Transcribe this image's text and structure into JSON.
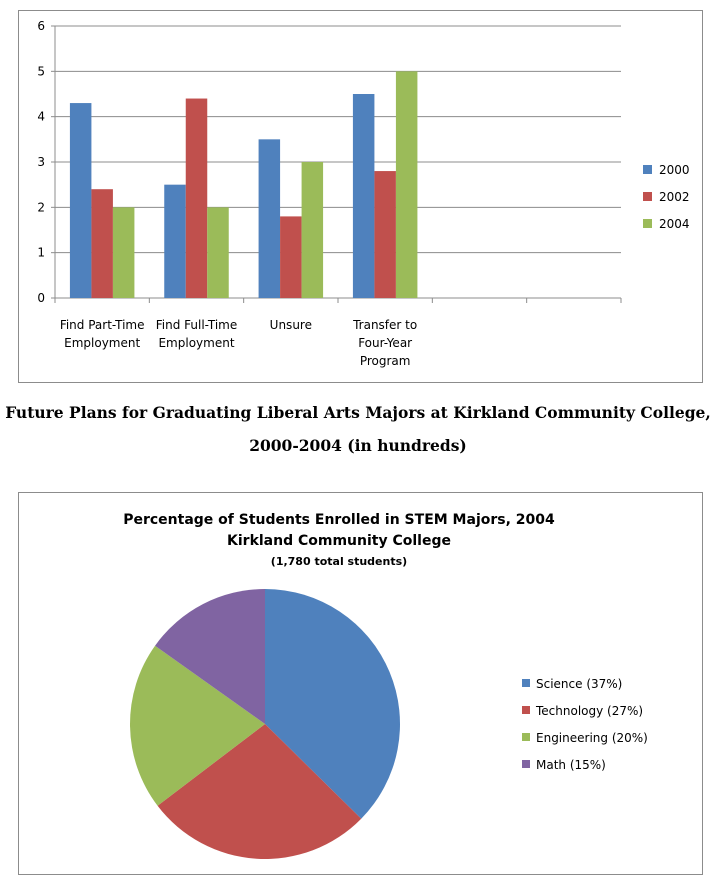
{
  "caption": {
    "line1": "Future Plans for Graduating Liberal Arts Majors at Kirkland Community College,",
    "line2": "2000-2004 (in hundreds)"
  },
  "chart_data": [
    {
      "type": "bar",
      "categories": [
        [
          "Find Part-Time",
          "Employment"
        ],
        [
          "Find Full-Time",
          "Employment"
        ],
        [
          "Unsure"
        ],
        [
          "Transfer to",
          "Four-Year",
          "Program"
        ],
        [
          ""
        ],
        [
          ""
        ]
      ],
      "series": [
        {
          "name": "2000",
          "color": "#4f81bd",
          "values": [
            4.3,
            2.5,
            3.5,
            4.5,
            null,
            null
          ]
        },
        {
          "name": "2002",
          "color": "#c0504d",
          "values": [
            2.4,
            4.4,
            1.8,
            2.8,
            null,
            null
          ]
        },
        {
          "name": "2004",
          "color": "#9bbb59",
          "values": [
            2.0,
            2.0,
            3.0,
            5.0,
            null,
            null
          ]
        }
      ],
      "ylim": [
        0,
        6
      ],
      "yticks": [
        "0",
        "1",
        "2",
        "3",
        "4",
        "5",
        "6"
      ],
      "grid": true,
      "legend": "right",
      "title": "",
      "xlabel": "",
      "ylabel": ""
    },
    {
      "type": "pie",
      "title": "Percentage of Students Enrolled in STEM Majors, 2004",
      "subtitle": "Kirkland Community College",
      "note": "(1,780 total students)",
      "slices": [
        {
          "label": "Science (37%)",
          "value": 37,
          "color": "#4f81bd"
        },
        {
          "label": "Technology  (27%)",
          "value": 27,
          "color": "#c0504d"
        },
        {
          "label": "Engineering (20%)",
          "value": 20,
          "color": "#9bbb59"
        },
        {
          "label": "Math (15%)",
          "value": 15,
          "color": "#8064a2"
        }
      ],
      "legend": "right"
    }
  ]
}
